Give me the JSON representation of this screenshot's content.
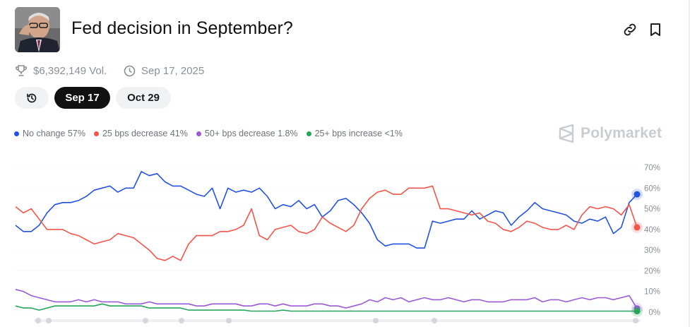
{
  "market": {
    "title": "Fed decision in September?",
    "volume": "$6,392,149 Vol.",
    "date": "Sep 17, 2025"
  },
  "header_icons": [
    "link-icon",
    "bookmark-icon"
  ],
  "tabs": [
    {
      "label": "",
      "icon": "history-icon",
      "active": false
    },
    {
      "label": "Sep 17",
      "active": true
    },
    {
      "label": "Oct 29",
      "active": false
    }
  ],
  "legend": [
    {
      "label": "No change 57%",
      "color": "#2252e0"
    },
    {
      "label": "25 bps decrease 41%",
      "color": "#f2554a"
    },
    {
      "label": "50+ bps decrease 1.8%",
      "color": "#9b59d6"
    },
    {
      "label": "25+ bps increase <1%",
      "color": "#27a55a"
    }
  ],
  "watermark": "Polymarket",
  "chart_data": {
    "type": "line",
    "y_unit": "%",
    "ylim": [
      0,
      70
    ],
    "yticks": [
      "0%",
      "10%",
      "20%",
      "30%",
      "40%",
      "50%",
      "60%",
      "70%"
    ],
    "grid": true,
    "series": [
      {
        "name": "No change",
        "color": "#2252e0",
        "values": [
          42,
          39,
          39,
          42,
          48,
          52,
          53,
          53,
          54,
          56,
          59,
          60,
          61,
          58,
          60,
          60,
          68,
          66,
          67,
          63,
          61,
          61,
          59,
          57,
          56,
          60,
          50,
          60,
          58,
          59,
          58,
          60,
          56,
          50,
          52,
          51,
          54,
          50,
          52,
          46,
          49,
          54,
          55,
          52,
          48,
          43,
          35,
          32,
          33,
          33,
          33,
          31,
          31,
          44,
          43,
          44,
          45,
          45,
          49,
          45,
          47,
          49,
          48,
          42,
          46,
          49,
          53,
          50,
          49,
          48,
          47,
          44,
          43,
          45,
          44,
          46,
          38,
          41,
          53,
          57
        ]
      },
      {
        "name": "25 bps decrease",
        "color": "#f2554a",
        "values": [
          51,
          48,
          50,
          45,
          40,
          40,
          40,
          38,
          37,
          35,
          33,
          34,
          35,
          38,
          37,
          36,
          33,
          30,
          26,
          25,
          27,
          25,
          33,
          37,
          37,
          37,
          39,
          39,
          40,
          42,
          50,
          37,
          35,
          40,
          41,
          42,
          39,
          38,
          40,
          46,
          43,
          41,
          39,
          42,
          50,
          55,
          58,
          59,
          57,
          57,
          60,
          60,
          60,
          61,
          50,
          50,
          49,
          48,
          47,
          48,
          44,
          43,
          40,
          39,
          41,
          44,
          43,
          41,
          40,
          40,
          42,
          40,
          47,
          51,
          50,
          51,
          50,
          47,
          52,
          41
        ]
      },
      {
        "name": "50+ bps decrease",
        "color": "#9b59d6",
        "values": [
          11,
          10,
          8,
          7,
          6,
          5,
          5,
          5,
          6,
          5,
          6,
          5,
          5,
          5,
          4,
          4,
          4,
          5,
          4,
          4,
          4,
          4,
          4,
          3,
          3,
          4,
          4,
          4,
          4,
          3,
          3,
          4,
          4,
          3,
          4,
          3,
          3,
          3,
          4,
          4,
          3,
          3,
          2,
          3,
          4,
          6,
          5,
          7,
          6,
          7,
          5,
          6,
          7,
          6,
          6,
          7,
          6,
          5,
          6,
          6,
          5,
          5,
          5,
          6,
          6,
          6,
          7,
          5,
          6,
          6,
          5,
          6,
          7,
          6,
          7,
          7,
          6,
          7,
          8,
          1.8
        ]
      },
      {
        "name": "25+ bps increase",
        "color": "#27a55a",
        "values": [
          3,
          2,
          2,
          1,
          2,
          3,
          3,
          3,
          3,
          3,
          3,
          4,
          3,
          3,
          3,
          3,
          3,
          2,
          2,
          2,
          2,
          2,
          1,
          1,
          1,
          1,
          1,
          1,
          1,
          1,
          0.5,
          0.5,
          0.5,
          0.5,
          1,
          0.5,
          0.5,
          0.5,
          0.5,
          0.5,
          0.5,
          0.5,
          0.5,
          0.5,
          0.5,
          0.5,
          0.5,
          0.5,
          0.5,
          0.5,
          0.5,
          0.5,
          0.5,
          0.5,
          0.5,
          0.5,
          0.5,
          0.5,
          0.5,
          0.5,
          0.5,
          0.5,
          0.5,
          0.5,
          0.5,
          0.5,
          0.5,
          0.5,
          0.5,
          0.5,
          0.5,
          0.5,
          0.5,
          0.5,
          0.5,
          0.5,
          0.5,
          0.5,
          0.5,
          0.5
        ]
      }
    ]
  }
}
